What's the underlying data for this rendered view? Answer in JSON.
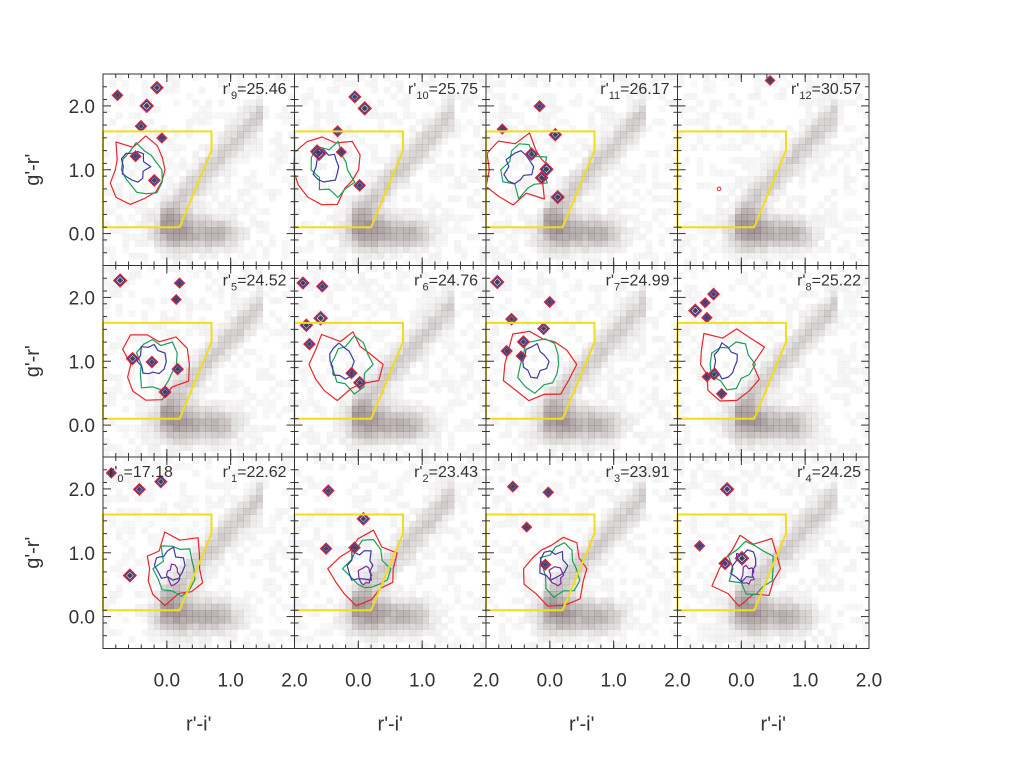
{
  "chart_data": {
    "type": "heatmap",
    "grid": {
      "rows": 3,
      "cols": 4
    },
    "xlabel": "r'-i'",
    "ylabel": "g'-r'",
    "xlim": [
      -1.0,
      2.0
    ],
    "ylim": [
      -0.5,
      2.5
    ],
    "x_ticks": [
      0.0,
      1.0,
      2.0
    ],
    "x_tick_labels": [
      "0.0",
      "1.0",
      "2.0"
    ],
    "y_ticks": [
      0.0,
      1.0,
      2.0
    ],
    "y_tick_labels": [
      "0.0",
      "1.0",
      "2.0"
    ],
    "grid_lines": false,
    "colors": {
      "density": "#5a4646",
      "selection": "#f2dc1c",
      "contour_outer": "#e8262a",
      "contour_mid": "#1aa05a",
      "contour_inner": "#3a3aa0",
      "contour_core": "#7a2a9a",
      "axes": "#333333"
    },
    "selection_region": {
      "vertices": [
        [
          -1.0,
          0.1
        ],
        [
          0.2,
          0.1
        ],
        [
          0.7,
          1.3
        ],
        [
          0.7,
          1.6
        ],
        [
          -1.0,
          1.6
        ]
      ]
    },
    "panels": [
      {
        "row": 0,
        "col": 0,
        "label": {
          "prefix": "r'",
          "sub": "9",
          "value": "=25.46"
        }
      },
      {
        "row": 0,
        "col": 1,
        "label": {
          "prefix": "r'",
          "sub": "10",
          "value": "=25.75"
        }
      },
      {
        "row": 0,
        "col": 2,
        "label": {
          "prefix": "r'",
          "sub": "11",
          "value": "=26.17"
        }
      },
      {
        "row": 0,
        "col": 3,
        "label": {
          "prefix": "r'",
          "sub": "12",
          "value": "=30.57"
        }
      },
      {
        "row": 1,
        "col": 0,
        "label": {
          "prefix": "r'",
          "sub": "5",
          "value": "=24.52"
        }
      },
      {
        "row": 1,
        "col": 1,
        "label": {
          "prefix": "r'",
          "sub": "6",
          "value": "=24.76"
        }
      },
      {
        "row": 1,
        "col": 2,
        "label": {
          "prefix": "r'",
          "sub": "7",
          "value": "=24.99"
        }
      },
      {
        "row": 1,
        "col": 3,
        "label": {
          "prefix": "r'",
          "sub": "8",
          "value": "=25.22"
        }
      },
      {
        "row": 2,
        "col": 0,
        "label": {
          "prefix": "r'",
          "sub": "1",
          "value": "=22.62"
        },
        "extra_label": {
          "prefix": "r'",
          "sub": "0",
          "value": "=17.18"
        }
      },
      {
        "row": 2,
        "col": 1,
        "label": {
          "prefix": "r'",
          "sub": "2",
          "value": "=23.43"
        }
      },
      {
        "row": 2,
        "col": 2,
        "label": {
          "prefix": "r'",
          "sub": "3",
          "value": "=23.91"
        }
      },
      {
        "row": 2,
        "col": 3,
        "label": {
          "prefix": "r'",
          "sub": "4",
          "value": "=24.25"
        }
      }
    ]
  }
}
